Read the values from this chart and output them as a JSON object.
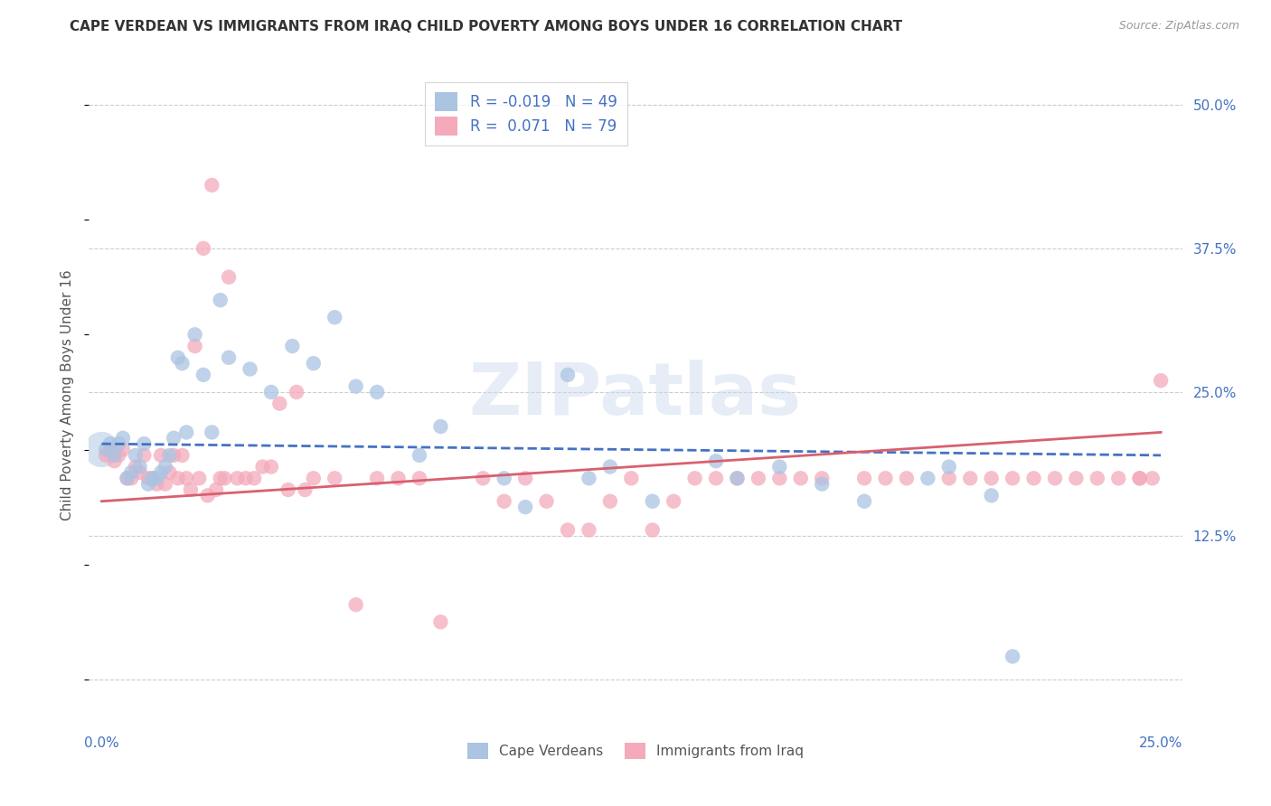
{
  "title": "CAPE VERDEAN VS IMMIGRANTS FROM IRAQ CHILD POVERTY AMONG BOYS UNDER 16 CORRELATION CHART",
  "source": "Source: ZipAtlas.com",
  "ylabel": "Child Poverty Among Boys Under 16",
  "xlim": [
    0.0,
    0.25
  ],
  "ylim": [
    0.0,
    0.52
  ],
  "x_ticks": [
    0.0,
    0.05,
    0.1,
    0.15,
    0.2,
    0.25
  ],
  "x_tick_labels": [
    "0.0%",
    "",
    "",
    "",
    "",
    "25.0%"
  ],
  "y_ticks": [
    0.0,
    0.125,
    0.25,
    0.375,
    0.5
  ],
  "y_tick_labels_right": [
    "",
    "12.5%",
    "25.0%",
    "37.5%",
    "50.0%"
  ],
  "blue_R": "-0.019",
  "blue_N": "49",
  "pink_R": "0.071",
  "pink_N": "79",
  "blue_color": "#aac4e2",
  "pink_color": "#f4aabb",
  "blue_line_color": "#4472C4",
  "pink_line_color": "#d9606e",
  "blue_line_style": "--",
  "pink_line_style": "-",
  "blue_line_start_y": 0.205,
  "blue_line_end_y": 0.195,
  "pink_line_start_y": 0.155,
  "pink_line_end_y": 0.215,
  "blue_scatter_x": [
    0.001,
    0.002,
    0.003,
    0.004,
    0.005,
    0.006,
    0.007,
    0.008,
    0.009,
    0.01,
    0.011,
    0.012,
    0.013,
    0.014,
    0.015,
    0.016,
    0.017,
    0.018,
    0.019,
    0.02,
    0.022,
    0.024,
    0.026,
    0.028,
    0.03,
    0.035,
    0.04,
    0.045,
    0.05,
    0.055,
    0.06,
    0.065,
    0.075,
    0.08,
    0.095,
    0.1,
    0.11,
    0.115,
    0.12,
    0.13,
    0.145,
    0.15,
    0.16,
    0.17,
    0.18,
    0.195,
    0.2,
    0.21,
    0.215
  ],
  "blue_scatter_y": [
    0.2,
    0.205,
    0.195,
    0.205,
    0.21,
    0.175,
    0.18,
    0.195,
    0.185,
    0.205,
    0.17,
    0.175,
    0.175,
    0.18,
    0.185,
    0.195,
    0.21,
    0.28,
    0.275,
    0.215,
    0.3,
    0.265,
    0.215,
    0.33,
    0.28,
    0.27,
    0.25,
    0.29,
    0.275,
    0.315,
    0.255,
    0.25,
    0.195,
    0.22,
    0.175,
    0.15,
    0.265,
    0.175,
    0.185,
    0.155,
    0.19,
    0.175,
    0.185,
    0.17,
    0.155,
    0.175,
    0.185,
    0.16,
    0.02
  ],
  "pink_scatter_x": [
    0.001,
    0.002,
    0.003,
    0.004,
    0.005,
    0.006,
    0.007,
    0.008,
    0.009,
    0.01,
    0.011,
    0.012,
    0.013,
    0.014,
    0.015,
    0.016,
    0.017,
    0.018,
    0.019,
    0.02,
    0.021,
    0.022,
    0.023,
    0.024,
    0.025,
    0.026,
    0.027,
    0.028,
    0.029,
    0.03,
    0.032,
    0.034,
    0.036,
    0.038,
    0.04,
    0.042,
    0.044,
    0.046,
    0.048,
    0.05,
    0.055,
    0.06,
    0.065,
    0.07,
    0.075,
    0.08,
    0.09,
    0.095,
    0.1,
    0.105,
    0.11,
    0.115,
    0.12,
    0.125,
    0.13,
    0.135,
    0.14,
    0.145,
    0.15,
    0.155,
    0.16,
    0.165,
    0.17,
    0.18,
    0.185,
    0.19,
    0.2,
    0.205,
    0.21,
    0.215,
    0.22,
    0.225,
    0.23,
    0.235,
    0.24,
    0.245,
    0.248,
    0.25,
    0.245
  ],
  "pink_scatter_y": [
    0.195,
    0.2,
    0.19,
    0.195,
    0.2,
    0.175,
    0.175,
    0.185,
    0.18,
    0.195,
    0.175,
    0.175,
    0.17,
    0.195,
    0.17,
    0.18,
    0.195,
    0.175,
    0.195,
    0.175,
    0.165,
    0.29,
    0.175,
    0.375,
    0.16,
    0.43,
    0.165,
    0.175,
    0.175,
    0.35,
    0.175,
    0.175,
    0.175,
    0.185,
    0.185,
    0.24,
    0.165,
    0.25,
    0.165,
    0.175,
    0.175,
    0.065,
    0.175,
    0.175,
    0.175,
    0.05,
    0.175,
    0.155,
    0.175,
    0.155,
    0.13,
    0.13,
    0.155,
    0.175,
    0.13,
    0.155,
    0.175,
    0.175,
    0.175,
    0.175,
    0.175,
    0.175,
    0.175,
    0.175,
    0.175,
    0.175,
    0.175,
    0.175,
    0.175,
    0.175,
    0.175,
    0.175,
    0.175,
    0.175,
    0.175,
    0.175,
    0.175,
    0.26,
    0.175
  ],
  "background_color": "#ffffff"
}
